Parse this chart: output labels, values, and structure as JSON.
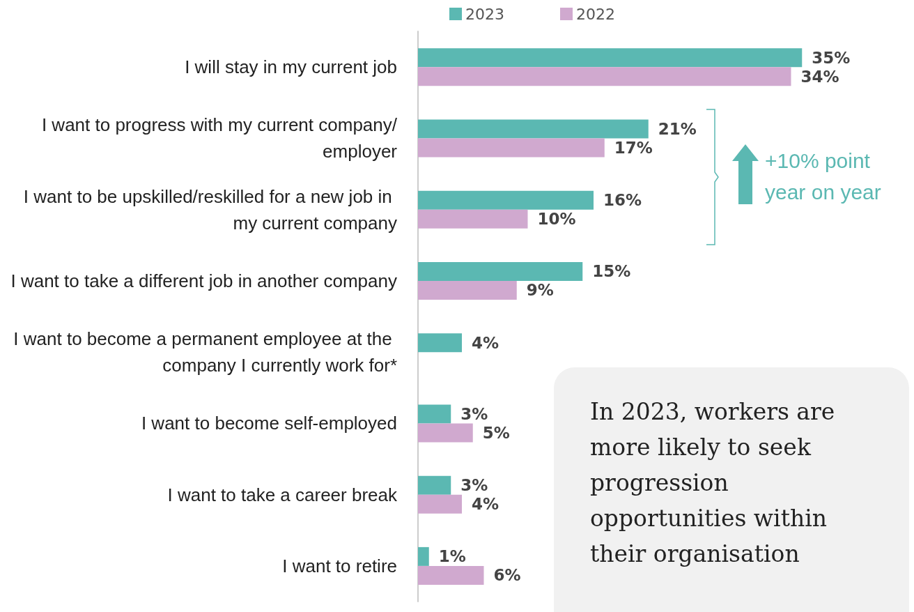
{
  "chart_data": {
    "type": "bar",
    "orientation": "horizontal",
    "categories": [
      "I will stay in my current job",
      "I want to progress with my current company/employer",
      "I want to be upskilled/reskilled for a new job in my current company",
      "I want to take a different job in another company",
      "I want to become a permanent employee at the company I currently work for*",
      "I want to become self-employed",
      "I want to take a career break",
      "I want to retire"
    ],
    "series": [
      {
        "name": "2023",
        "color": "#5bb8b2",
        "values": [
          35,
          21,
          16,
          15,
          4,
          3,
          3,
          1
        ],
        "value_labels": [
          "35%",
          "21%",
          "16%",
          "15%",
          "4%",
          "3%",
          "3%",
          "1%"
        ]
      },
      {
        "name": "2022",
        "color": "#d0a9cf",
        "values": [
          34,
          17,
          10,
          9,
          null,
          5,
          4,
          6
        ],
        "value_labels": [
          "34%",
          "17%",
          "10%",
          "9%",
          null,
          "5%",
          "4%",
          "6%"
        ]
      }
    ],
    "legend": "top",
    "grid": false,
    "annotations": [
      "+10% point year on year",
      "In 2023, workers are more likely to seek progression opportunities within their organisation"
    ]
  }
}
